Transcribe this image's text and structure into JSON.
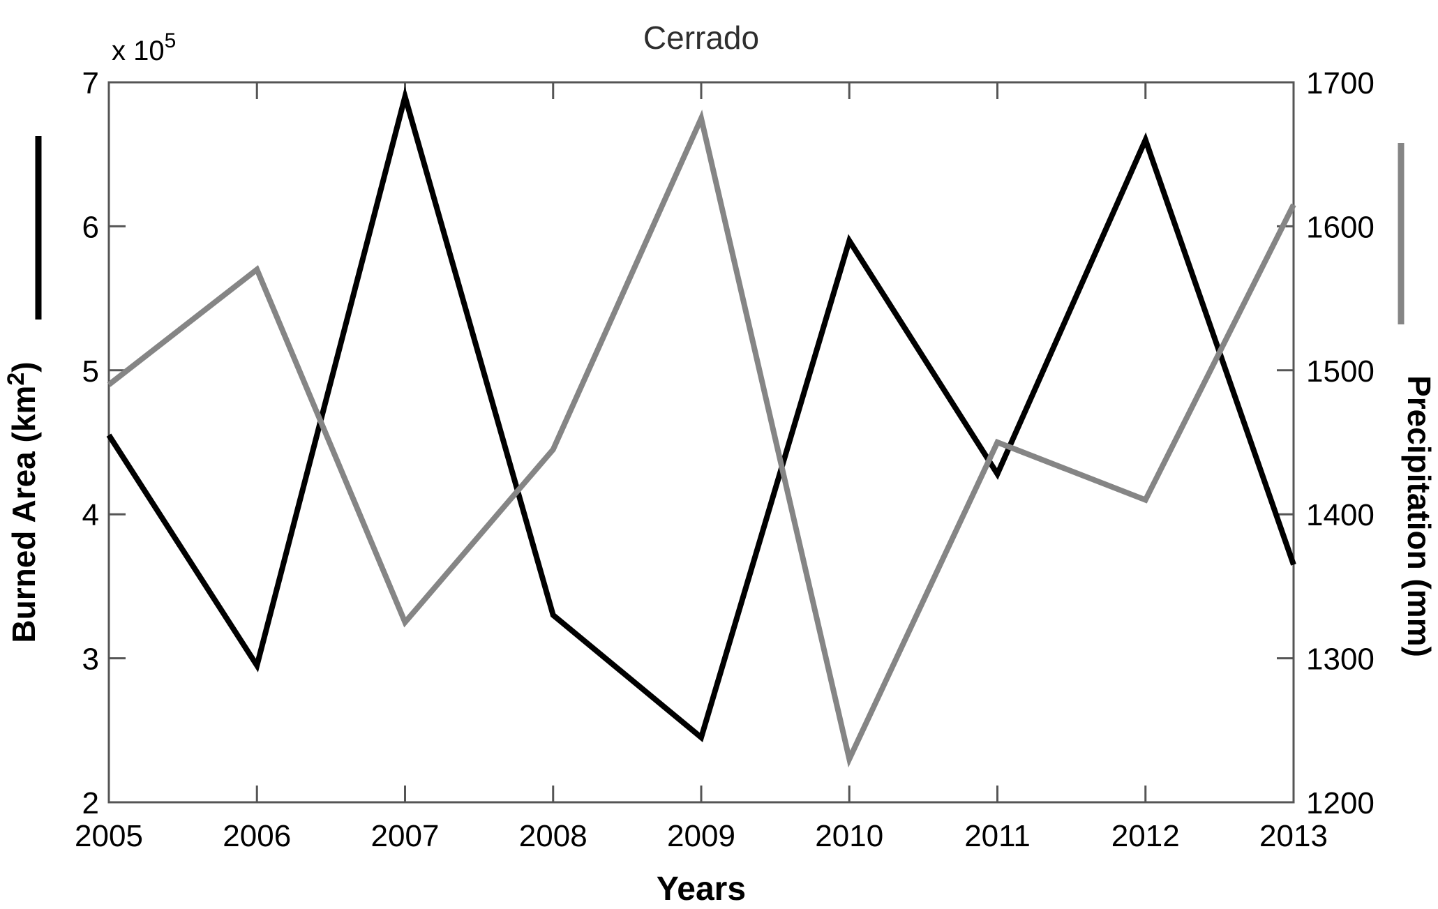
{
  "title": "Cerrado",
  "exponent_label": {
    "base": "x 10",
    "power": "5"
  },
  "x_axis": {
    "label": "Years",
    "range": [
      2005,
      2013
    ],
    "tick_values": [
      2005,
      2006,
      2007,
      2008,
      2009,
      2010,
      2011,
      2012,
      2013
    ],
    "tick_labels": [
      "2005",
      "2006",
      "2007",
      "2008",
      "2009",
      "2010",
      "2011",
      "2012",
      "2013"
    ]
  },
  "left_axis": {
    "label_pre": "Burned Area (km",
    "label_sup": "2",
    "label_post": ")",
    "range": [
      2,
      7
    ],
    "tick_values": [
      2,
      3,
      4,
      5,
      6,
      7
    ],
    "tick_labels": [
      "2",
      "3",
      "4",
      "5",
      "6",
      "7"
    ]
  },
  "right_axis": {
    "label": "Precipitation (mm)",
    "range": [
      1200,
      1700
    ],
    "tick_values": [
      1200,
      1300,
      1400,
      1500,
      1600,
      1700
    ],
    "tick_labels": [
      "1200",
      "1300",
      "1400",
      "1500",
      "1600",
      "1700"
    ]
  },
  "colors": {
    "burned_area": "#000000",
    "precipitation": "#858585",
    "axis": "#555555"
  },
  "chart_data": {
    "type": "line",
    "x": [
      2005,
      2006,
      2007,
      2008,
      2009,
      2010,
      2011,
      2012,
      2013
    ],
    "title": "Cerrado",
    "xlabel": "Years",
    "x_range": [
      2005,
      2013
    ],
    "grid": false,
    "legend_position": "axis-labels",
    "series": [
      {
        "name": "Burned Area (km2)",
        "axis": "left",
        "unit": "x 10^5 km2",
        "color": "#000000",
        "values": [
          4.55,
          2.95,
          6.9,
          3.3,
          2.45,
          5.9,
          4.28,
          6.6,
          3.65
        ],
        "y_range": [
          2,
          7
        ]
      },
      {
        "name": "Precipitation (mm)",
        "axis": "right",
        "unit": "mm",
        "color": "#858585",
        "values": [
          1490,
          1570,
          1325,
          1445,
          1675,
          1230,
          1450,
          1410,
          1615
        ],
        "y_range": [
          1200,
          1700
        ]
      }
    ]
  }
}
